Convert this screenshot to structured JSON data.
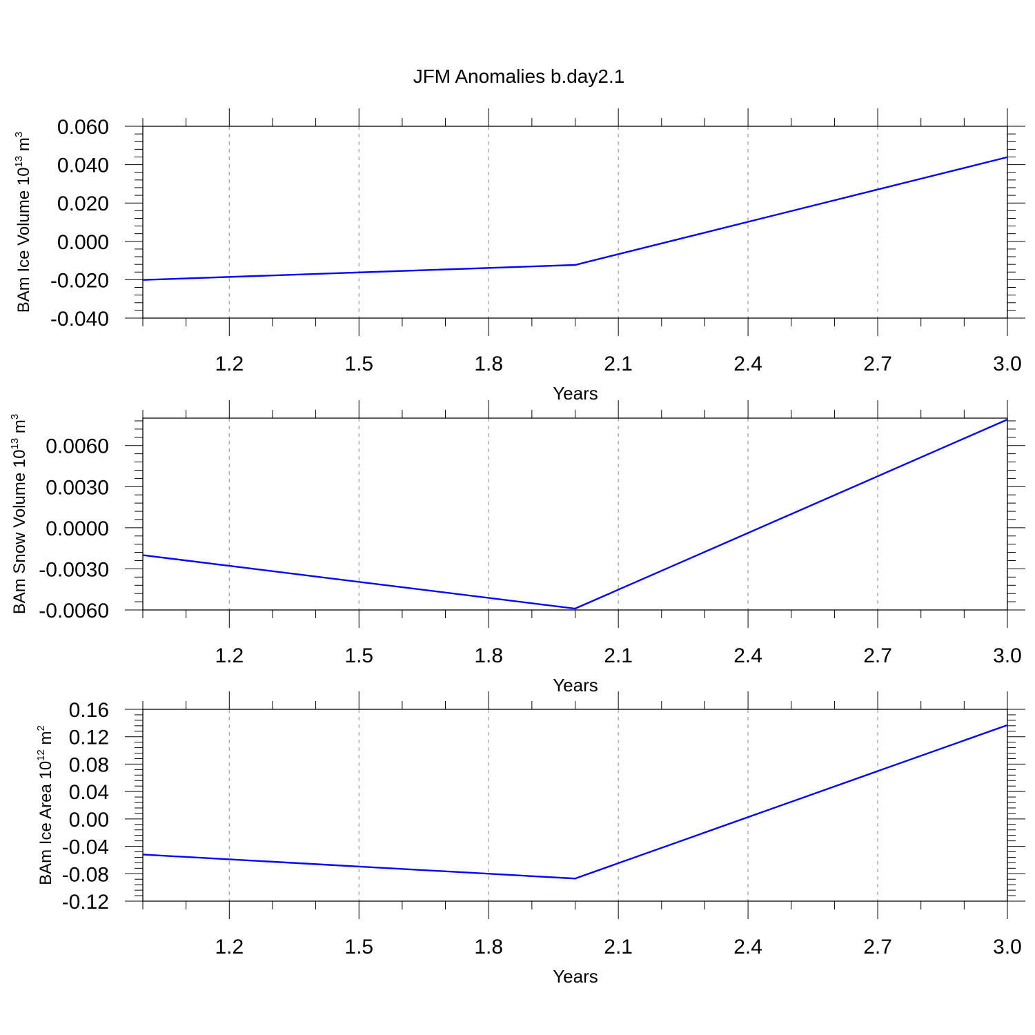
{
  "title": "JFM Anomalies b.day2.1",
  "colors": {
    "line": "#0000ff",
    "grid": "#999999",
    "axes": "#000000"
  },
  "chart_data": [
    {
      "type": "line",
      "xlabel": "Years",
      "ylabel": "BAm Ice Volume 10",
      "ylabel_exponent": "13",
      "ylabel_unit": "m",
      "ylabel_unit_exponent": "3",
      "xlim": [
        1.0,
        3.0
      ],
      "ylim": [
        -0.04,
        0.06
      ],
      "xticks": [
        "1.2",
        "1.5",
        "1.8",
        "2.1",
        "2.4",
        "2.7",
        "3.0"
      ],
      "yticks": [
        "0.060",
        "0.040",
        "0.020",
        "0.000",
        "-0.020",
        "-0.040"
      ],
      "grid": "vertical dashed at x ticks",
      "series": [
        {
          "x": [
            1,
            2,
            3
          ],
          "y": [
            -0.0201,
            -0.0123,
            0.0439
          ]
        }
      ]
    },
    {
      "type": "line",
      "xlabel": "Years",
      "ylabel": "BAm Snow Volume 10",
      "ylabel_exponent": "13",
      "ylabel_unit": "m",
      "ylabel_unit_exponent": "3",
      "xlim": [
        1.0,
        3.0
      ],
      "ylim": [
        -0.006,
        0.008
      ],
      "xticks": [
        "1.2",
        "1.5",
        "1.8",
        "2.1",
        "2.4",
        "2.7",
        "3.0"
      ],
      "yticks": [
        "0.0060",
        "0.0030",
        "0.0000",
        "-0.0030",
        "-0.0060"
      ],
      "grid": "vertical dashed at x ticks",
      "series": [
        {
          "x": [
            1,
            2,
            3
          ],
          "y": [
            -0.002,
            -0.0059,
            0.0079
          ]
        }
      ]
    },
    {
      "type": "line",
      "xlabel": "Years",
      "ylabel": "BAm Ice Area 10",
      "ylabel_exponent": "12",
      "ylabel_unit": "m",
      "ylabel_unit_exponent": "2",
      "xlim": [
        1.0,
        3.0
      ],
      "ylim": [
        -0.12,
        0.16
      ],
      "xticks": [
        "1.2",
        "1.5",
        "1.8",
        "2.1",
        "2.4",
        "2.7",
        "3.0"
      ],
      "yticks": [
        "0.16",
        "0.12",
        "0.08",
        "0.04",
        "0.00",
        "-0.04",
        "-0.08",
        "-0.12"
      ],
      "grid": "vertical dashed at x ticks",
      "series": [
        {
          "x": [
            1,
            2,
            3
          ],
          "y": [
            -0.052,
            -0.087,
            0.137
          ]
        }
      ]
    }
  ]
}
